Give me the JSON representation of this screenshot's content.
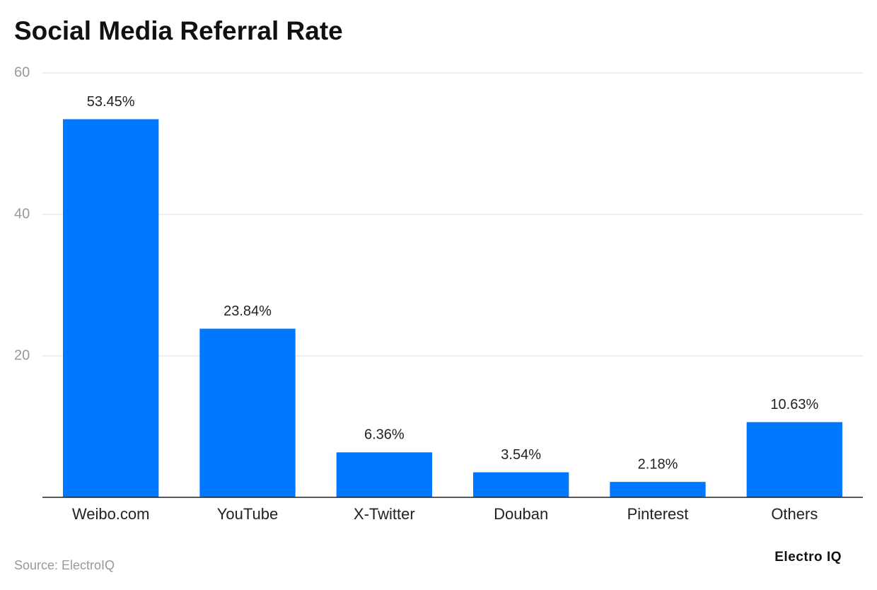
{
  "chart_data": {
    "type": "bar",
    "title": "Social Media Referral Rate",
    "categories": [
      "Weibo.com",
      "YouTube",
      "X-Twitter",
      "Douban",
      "Pinterest",
      "Others"
    ],
    "values": [
      53.45,
      23.84,
      6.36,
      3.54,
      2.18,
      10.63
    ],
    "value_labels": [
      "53.45%",
      "23.84%",
      "6.36%",
      "3.54%",
      "2.18%",
      "10.63%"
    ],
    "color": "#0077ff",
    "ylim": [
      0,
      60
    ],
    "yticks": [
      20,
      40,
      60
    ],
    "grid": true,
    "source": "Source: ElectroIQ",
    "brand": "Electro IQ"
  }
}
